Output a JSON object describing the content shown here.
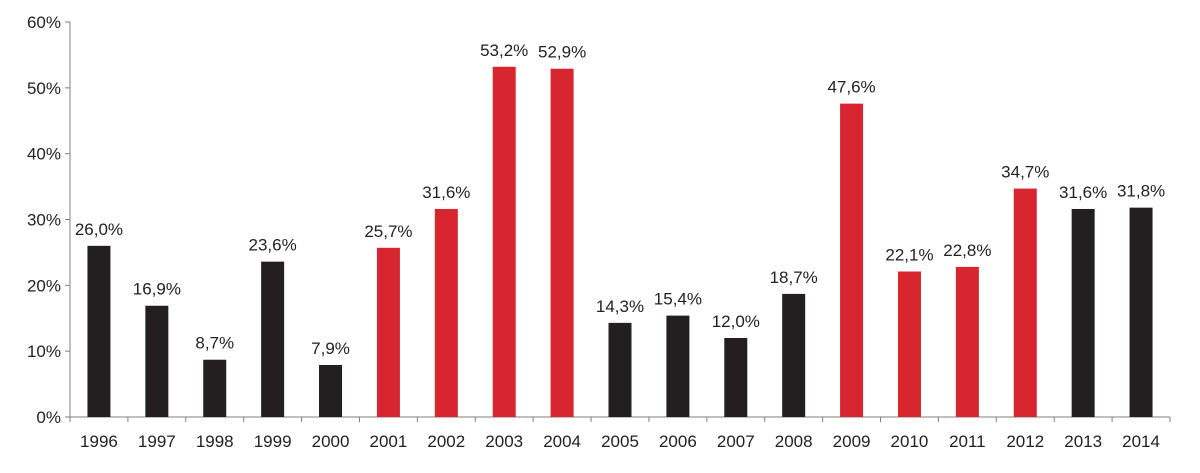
{
  "chart_data": {
    "type": "bar",
    "title": "",
    "xlabel": "",
    "ylabel": "",
    "ylim": [
      0,
      60
    ],
    "y_ticks": [
      0,
      10,
      20,
      30,
      40,
      50,
      60
    ],
    "y_tick_labels": [
      "0%",
      "10%",
      "20%",
      "30%",
      "40%",
      "50%",
      "60%"
    ],
    "grid": false,
    "legend": "none",
    "categories": [
      "1996",
      "1997",
      "1998",
      "1999",
      "2000",
      "2001",
      "2002",
      "2003",
      "2004",
      "2005",
      "2006",
      "2007",
      "2008",
      "2009",
      "2010",
      "2011",
      "2012",
      "2013",
      "2014"
    ],
    "values": [
      26.0,
      16.9,
      8.7,
      23.6,
      7.9,
      25.7,
      31.6,
      53.2,
      52.9,
      14.3,
      15.4,
      12.0,
      18.7,
      47.6,
      22.1,
      22.8,
      34.7,
      31.6,
      31.8
    ],
    "value_labels": [
      "26,0%",
      "16,9%",
      "8,7%",
      "23,6%",
      "7,9%",
      "25,7%",
      "31,6%",
      "53,2%",
      "52,9%",
      "14,3%",
      "15,4%",
      "12,0%",
      "18,7%",
      "47,6%",
      "22,1%",
      "22,8%",
      "34,7%",
      "31,6%",
      "31,8%"
    ],
    "bar_colors": [
      "#231f20",
      "#231f20",
      "#231f20",
      "#231f20",
      "#231f20",
      "#d7262f",
      "#d7262f",
      "#d7262f",
      "#d7262f",
      "#231f20",
      "#231f20",
      "#231f20",
      "#231f20",
      "#d7262f",
      "#d7262f",
      "#d7262f",
      "#d7262f",
      "#231f20",
      "#231f20"
    ]
  }
}
